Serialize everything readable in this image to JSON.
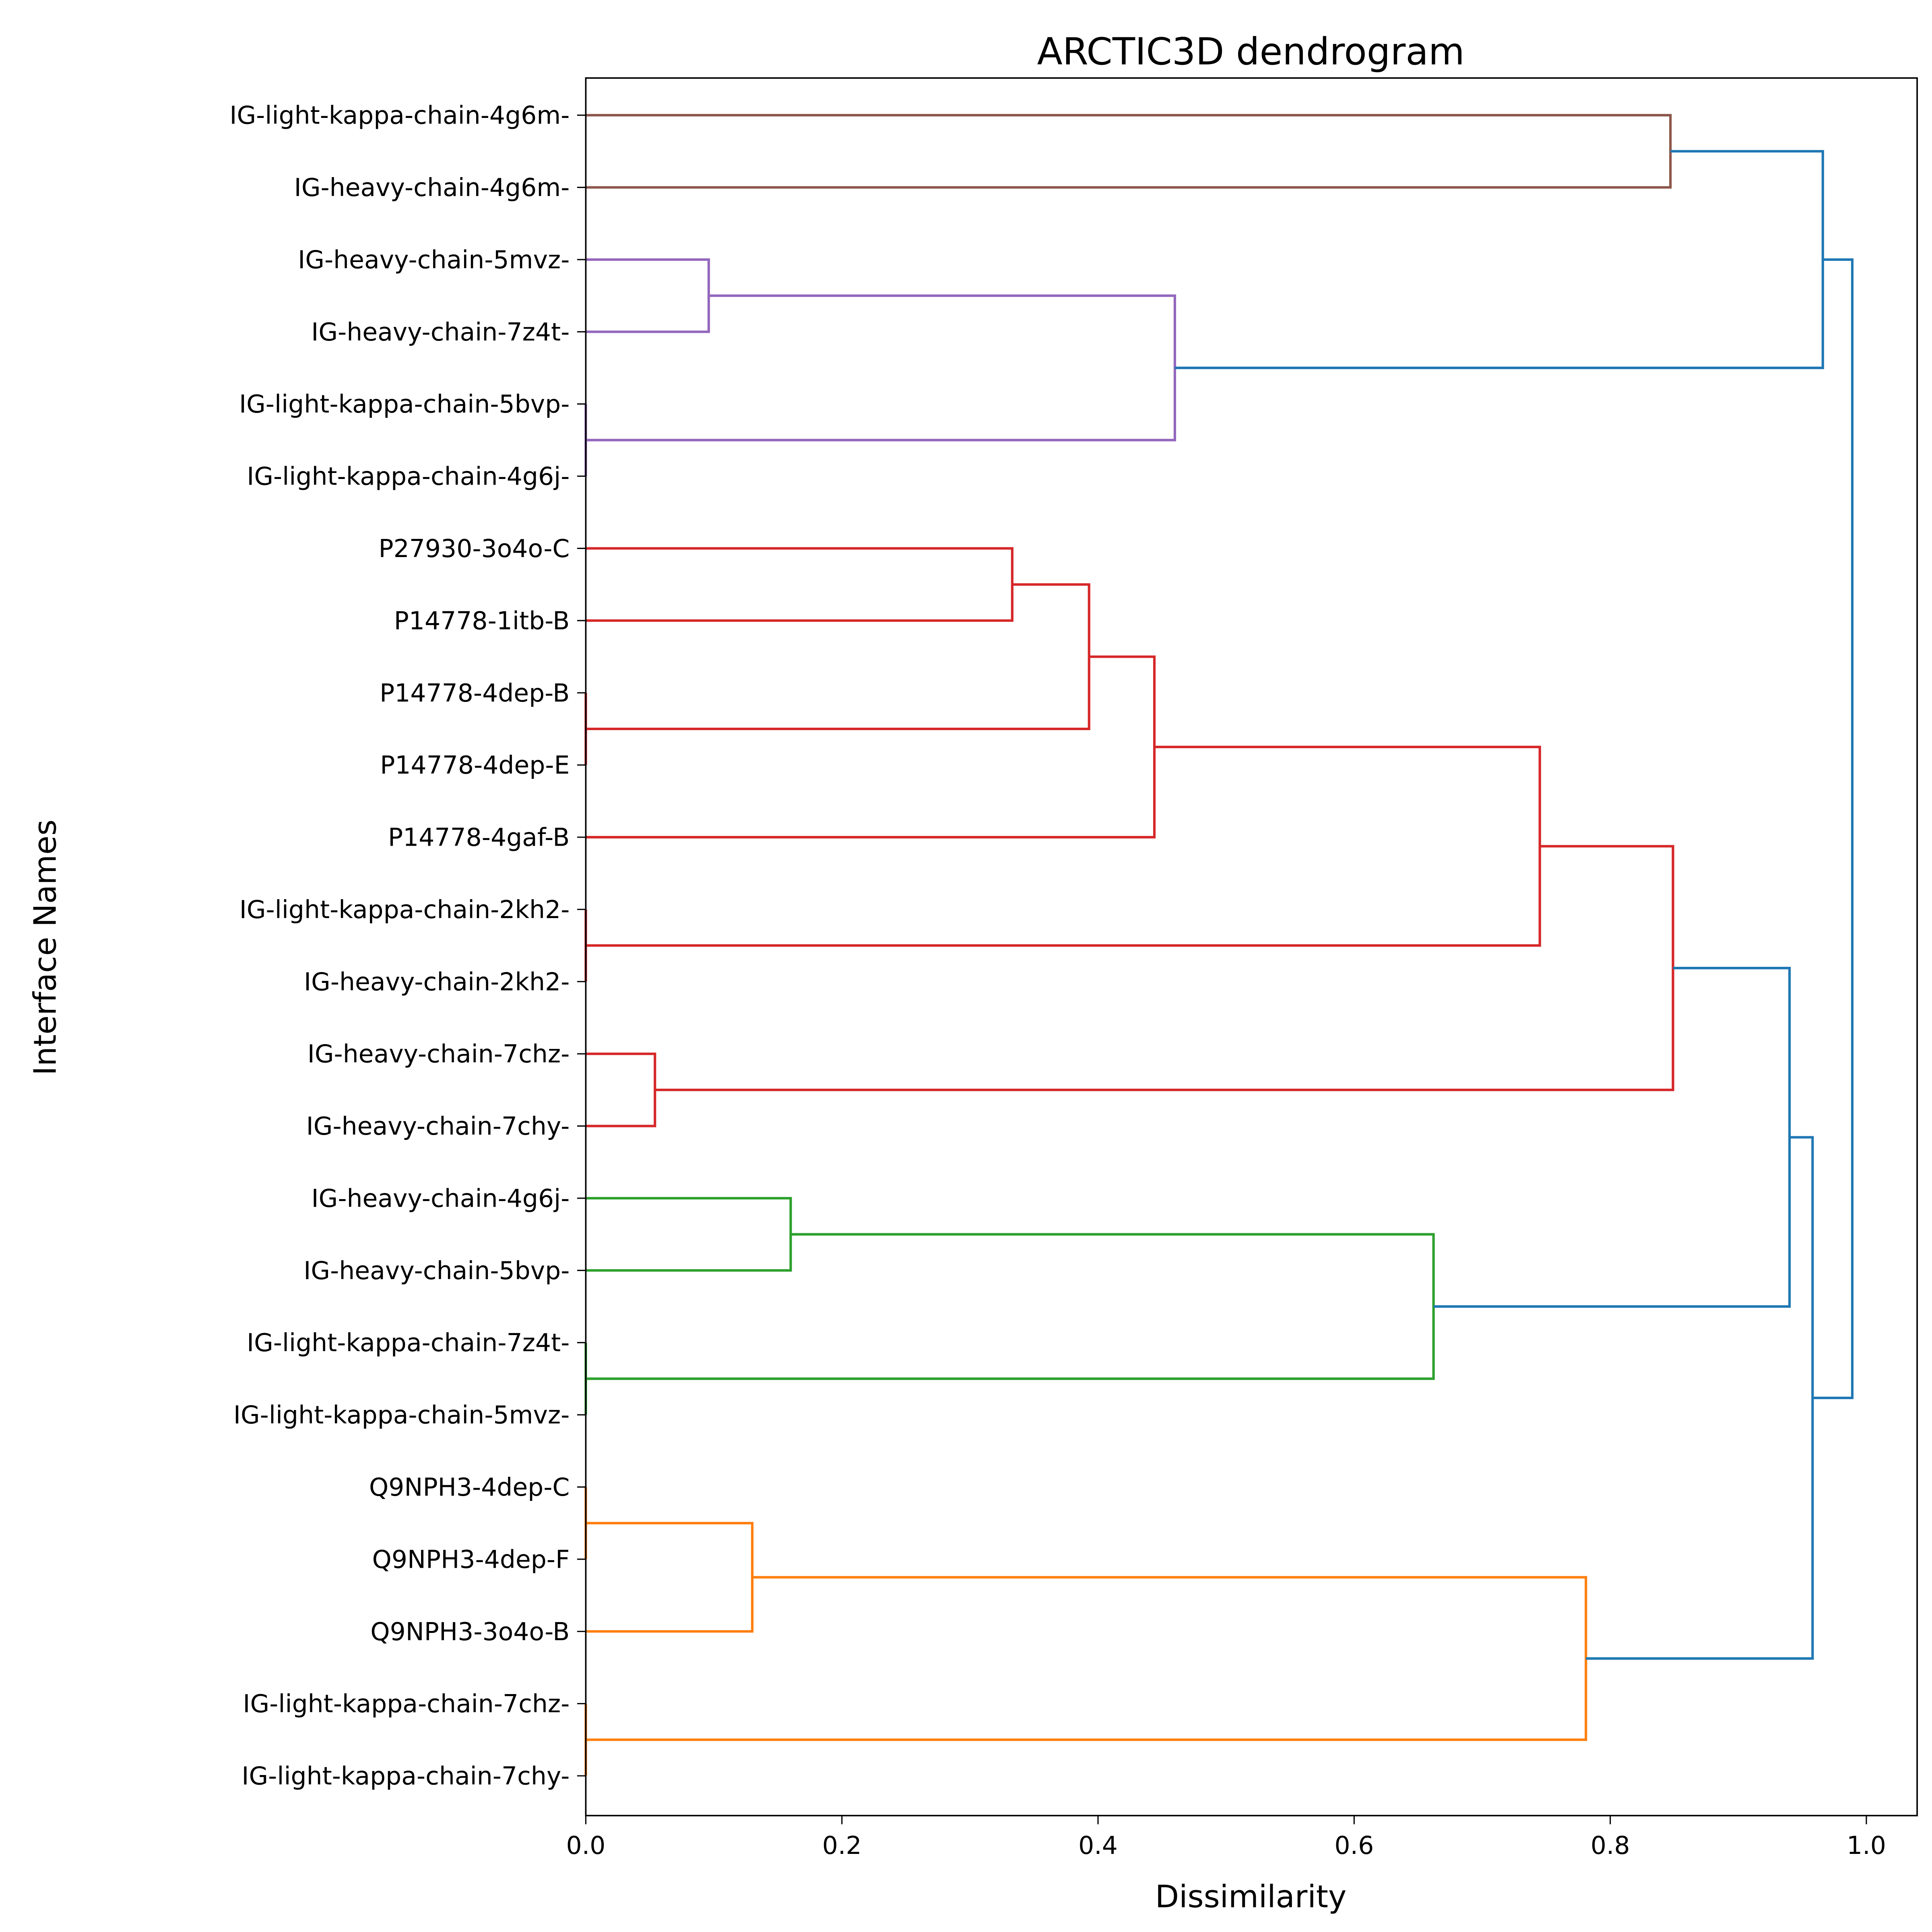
{
  "chart_data": {
    "type": "dendrogram",
    "orientation": "left",
    "title": "ARCTIC3D dendrogram",
    "xlabel": "Dissimilarity",
    "ylabel": "Interface Names",
    "xlim": [
      0.0,
      1.04
    ],
    "xticks": [
      "0.0",
      "0.2",
      "0.4",
      "0.6",
      "0.8",
      "1.0"
    ],
    "grid": false,
    "colors": {
      "C0": "#1f77b4",
      "C1": "#ff7f0e",
      "C2": "#2ca02c",
      "C3": "#d62728",
      "C4": "#9467bd",
      "C5": "#8c564b"
    },
    "leaves": [
      "IG-light-kappa-chain-4g6m-",
      "IG-heavy-chain-4g6m-",
      "IG-heavy-chain-5mvz-",
      "IG-heavy-chain-7z4t-",
      "IG-light-kappa-chain-5bvp-",
      "IG-light-kappa-chain-4g6j-",
      "P27930-3o4o-C",
      "P14778-1itb-B",
      "P14778-4dep-B",
      "P14778-4dep-E",
      "P14778-4gaf-B",
      "IG-light-kappa-chain-2kh2-",
      "IG-heavy-chain-2kh2-",
      "IG-heavy-chain-7chz-",
      "IG-heavy-chain-7chy-",
      "IG-heavy-chain-4g6j-",
      "IG-heavy-chain-5bvp-",
      "IG-light-kappa-chain-7z4t-",
      "IG-light-kappa-chain-5mvz-",
      "Q9NPH3-4dep-C",
      "Q9NPH3-4dep-F",
      "Q9NPH3-3o4o-B",
      "IG-light-kappa-chain-7chz-",
      "IG-light-kappa-chain-7chy-"
    ],
    "merges": [
      {
        "a": 0,
        "b": 1,
        "height": 0.847,
        "color": "C5"
      },
      {
        "a": 2,
        "b": 3,
        "height": 0.096,
        "color": "C4"
      },
      {
        "a": 4,
        "b": 5,
        "height": 0.0,
        "color": "C4"
      },
      {
        "a": 25,
        "b": 26,
        "height": 0.46,
        "color": "C4"
      },
      {
        "a": 24,
        "b": 27,
        "height": 0.966,
        "color": "C0"
      },
      {
        "a": 6,
        "b": 7,
        "height": 0.333,
        "color": "C3"
      },
      {
        "a": 8,
        "b": 9,
        "height": 0.0,
        "color": "C3"
      },
      {
        "a": 29,
        "b": 30,
        "height": 0.393,
        "color": "C3"
      },
      {
        "a": 31,
        "b": 10,
        "height": 0.444,
        "color": "C3"
      },
      {
        "a": 11,
        "b": 12,
        "height": 0.0,
        "color": "C3"
      },
      {
        "a": 32,
        "b": 33,
        "height": 0.745,
        "color": "C3"
      },
      {
        "a": 13,
        "b": 14,
        "height": 0.054,
        "color": "C3"
      },
      {
        "a": 34,
        "b": 35,
        "height": 0.849,
        "color": "C3"
      },
      {
        "a": 15,
        "b": 16,
        "height": 0.16,
        "color": "C2"
      },
      {
        "a": 17,
        "b": 18,
        "height": 0.0,
        "color": "C2"
      },
      {
        "a": 37,
        "b": 38,
        "height": 0.662,
        "color": "C2"
      },
      {
        "a": 36,
        "b": 39,
        "height": 0.94,
        "color": "C0"
      },
      {
        "a": 19,
        "b": 20,
        "height": 0.0,
        "color": "C1"
      },
      {
        "a": 41,
        "b": 21,
        "height": 0.13,
        "color": "C1"
      },
      {
        "a": 22,
        "b": 23,
        "height": 0.0,
        "color": "C1"
      },
      {
        "a": 42,
        "b": 43,
        "height": 0.781,
        "color": "C1"
      },
      {
        "a": 40,
        "b": 44,
        "height": 0.958,
        "color": "C0"
      },
      {
        "a": 28,
        "b": 45,
        "height": 0.989,
        "color": "C0"
      }
    ]
  }
}
